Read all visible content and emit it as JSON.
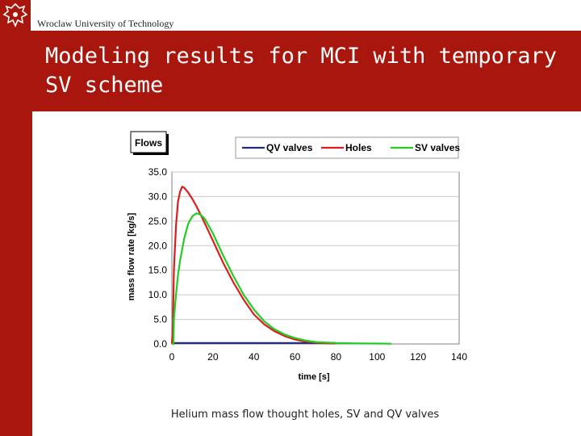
{
  "header": {
    "university": "Wroclaw University of Technology",
    "logo_icon": "eagle-crest-icon"
  },
  "slide": {
    "title": "Modeling results for MCI with temporary SV scheme",
    "caption": "Helium mass flow thought holes, SV and QV valves"
  },
  "colors": {
    "brand": "#a8160d",
    "qv": "#1f2a7a",
    "holes": "#d81e1e",
    "sv": "#22cc22"
  },
  "chart_data": {
    "type": "line",
    "title": "Flows",
    "xlabel": "time [s]",
    "ylabel": "mass flow rate [kg/s]",
    "xlim": [
      0,
      140
    ],
    "ylim": [
      0,
      35
    ],
    "xticks": [
      "0",
      "20",
      "40",
      "60",
      "80",
      "100",
      "120",
      "140"
    ],
    "yticks": [
      "0.0",
      "5.0",
      "10.0",
      "15.0",
      "20.0",
      "25.0",
      "30.0",
      "35.0"
    ],
    "legend_position": "top",
    "grid": true,
    "series": [
      {
        "name": "QV valves",
        "color": "#1f2a7a",
        "x": [
          0,
          0.5,
          20,
          40,
          60,
          80
        ],
        "y": [
          0,
          0.2,
          0.2,
          0.2,
          0.2,
          0.2
        ]
      },
      {
        "name": "Holes",
        "color": "#d81e1e",
        "x": [
          0,
          0.5,
          1,
          2,
          3,
          4,
          5,
          6,
          8,
          10,
          12,
          15,
          20,
          25,
          30,
          35,
          40,
          45,
          50,
          55,
          60,
          65,
          70,
          75,
          80
        ],
        "y": [
          0,
          4,
          15,
          24,
          29,
          31,
          32,
          31.8,
          30.8,
          29.5,
          28,
          25.5,
          21,
          16.5,
          12.5,
          9,
          6,
          4,
          2.6,
          1.6,
          0.9,
          0.5,
          0.3,
          0.15,
          0.1
        ]
      },
      {
        "name": "SV valves",
        "color": "#22cc22",
        "x": [
          0,
          0.8,
          1,
          2,
          3,
          4,
          6,
          8,
          10,
          12,
          14,
          16,
          20,
          25,
          30,
          35,
          40,
          45,
          50,
          55,
          60,
          65,
          70,
          80,
          90,
          100,
          107
        ],
        "y": [
          0,
          0,
          5,
          10,
          14,
          17,
          21.5,
          24.5,
          26,
          26.6,
          26.3,
          25.5,
          22.5,
          18,
          13.8,
          10,
          7,
          4.6,
          3,
          1.9,
          1.2,
          0.7,
          0.4,
          0.2,
          0.1,
          0.08,
          0.05
        ]
      }
    ]
  }
}
